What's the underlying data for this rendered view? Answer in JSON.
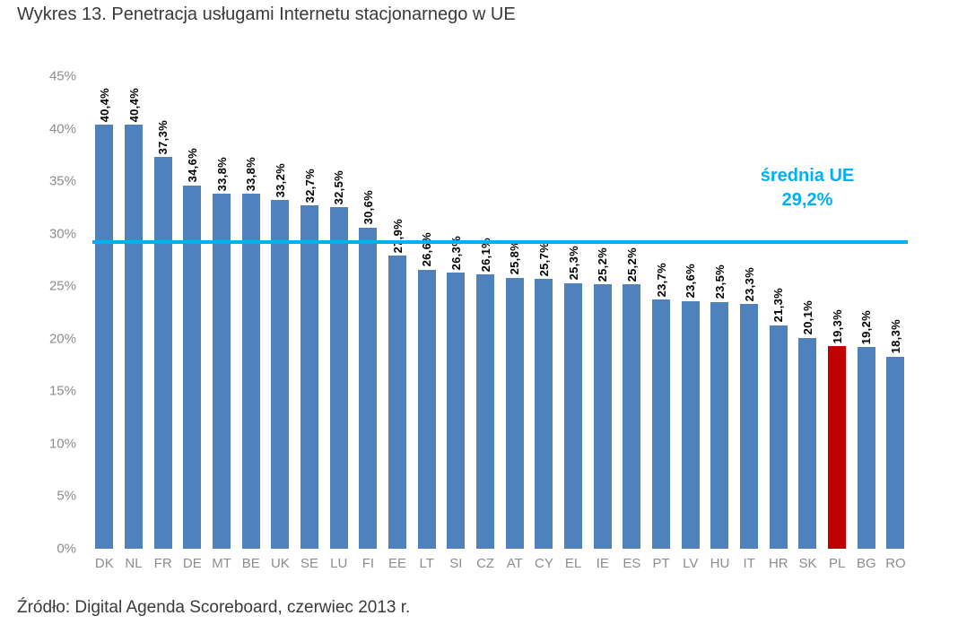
{
  "title": "Wykres 13. Penetracja usługami Internetu stacjonarnego w UE",
  "source": "Źródło: Digital Agenda Scoreboard, czerwiec 2013 r.",
  "average_label": {
    "line1": "średnia UE",
    "line2": "29,2%"
  },
  "chart_data": {
    "type": "bar",
    "title": "Wykres 13. Penetracja usługami Internetu stacjonarnego w UE",
    "categories": [
      "DK",
      "NL",
      "FR",
      "DE",
      "MT",
      "BE",
      "UK",
      "SE",
      "LU",
      "FI",
      "EE",
      "LT",
      "SI",
      "CZ",
      "AT",
      "CY",
      "EL",
      "IE",
      "ES",
      "PT",
      "LV",
      "HU",
      "IT",
      "HR",
      "SK",
      "PL",
      "BG",
      "RO"
    ],
    "values": [
      40.4,
      40.4,
      37.3,
      34.6,
      33.8,
      33.8,
      33.2,
      32.7,
      32.5,
      30.6,
      27.9,
      26.6,
      26.3,
      26.1,
      25.8,
      25.7,
      25.3,
      25.2,
      25.2,
      23.7,
      23.6,
      23.5,
      23.3,
      21.3,
      20.1,
      19.3,
      19.2,
      18.3
    ],
    "labels": [
      "40,4%",
      "40,4%",
      "37,3%",
      "34,6%",
      "33,8%",
      "33,8%",
      "33,2%",
      "32,7%",
      "32,5%",
      "30,6%",
      "27,9%",
      "26,6%",
      "26,3%",
      "26,1%",
      "25,8%",
      "25,7%",
      "25,3%",
      "25,2%",
      "25,2%",
      "23,7%",
      "23,6%",
      "23,5%",
      "23,3%",
      "21,3%",
      "20,1%",
      "19,3%",
      "19,2%",
      "18,3%"
    ],
    "highlight_category": "PL",
    "average": 29.2,
    "average_label": "średnia UE 29,2%",
    "ylim": [
      0,
      45
    ],
    "ytick_step": 5,
    "yticks": [
      "0%",
      "5%",
      "10%",
      "15%",
      "20%",
      "25%",
      "30%",
      "35%",
      "40%",
      "45%"
    ],
    "grid": false,
    "legend": "none",
    "bar_color": "#4f81bd",
    "highlight_color": "#c00000",
    "average_line_color": "#00b0f0",
    "axis_label_color": "#8c8c8c",
    "value_label_color": "#000000"
  }
}
